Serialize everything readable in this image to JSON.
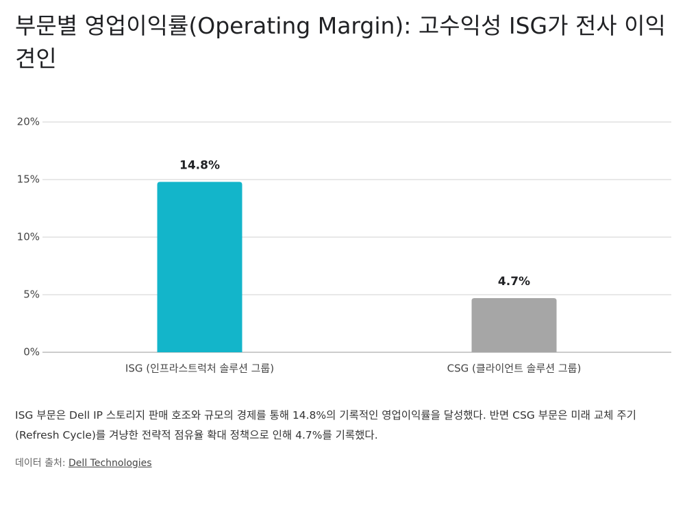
{
  "chart_data": {
    "type": "bar",
    "title": "부문별 영업이익률(Operating Margin): 고수익성 ISG가 전사 이익 견인",
    "categories": [
      "ISG (인프라스트럭처 솔루션 그룹)",
      "CSG (클라이언트 솔루션 그룹)"
    ],
    "values": [
      14.8,
      4.7
    ],
    "value_labels": [
      "14.8%",
      "4.7%"
    ],
    "colors": [
      "#13b5ca",
      "#a6a6a6"
    ],
    "ylim": [
      0,
      20
    ],
    "yticks": [
      {
        "value": 0,
        "label": "0%"
      },
      {
        "value": 5,
        "label": "5%"
      },
      {
        "value": 10,
        "label": "10%"
      },
      {
        "value": 15,
        "label": "15%"
      },
      {
        "value": 20,
        "label": "20%"
      }
    ],
    "grid": true,
    "description": "ISG 부문은 Dell IP 스토리지 판매 호조와 규모의 경제를 통해 14.8%의 기록적인 영업이익률을 달성했다. 반면 CSG 부문은 미래 교체 주기(Refresh Cycle)를 겨냥한 전략적 점유율 확대 정책으로 인해 4.7%를 기록했다.",
    "source_prefix": "데이터 출처:",
    "source_link": "Dell Technologies"
  }
}
